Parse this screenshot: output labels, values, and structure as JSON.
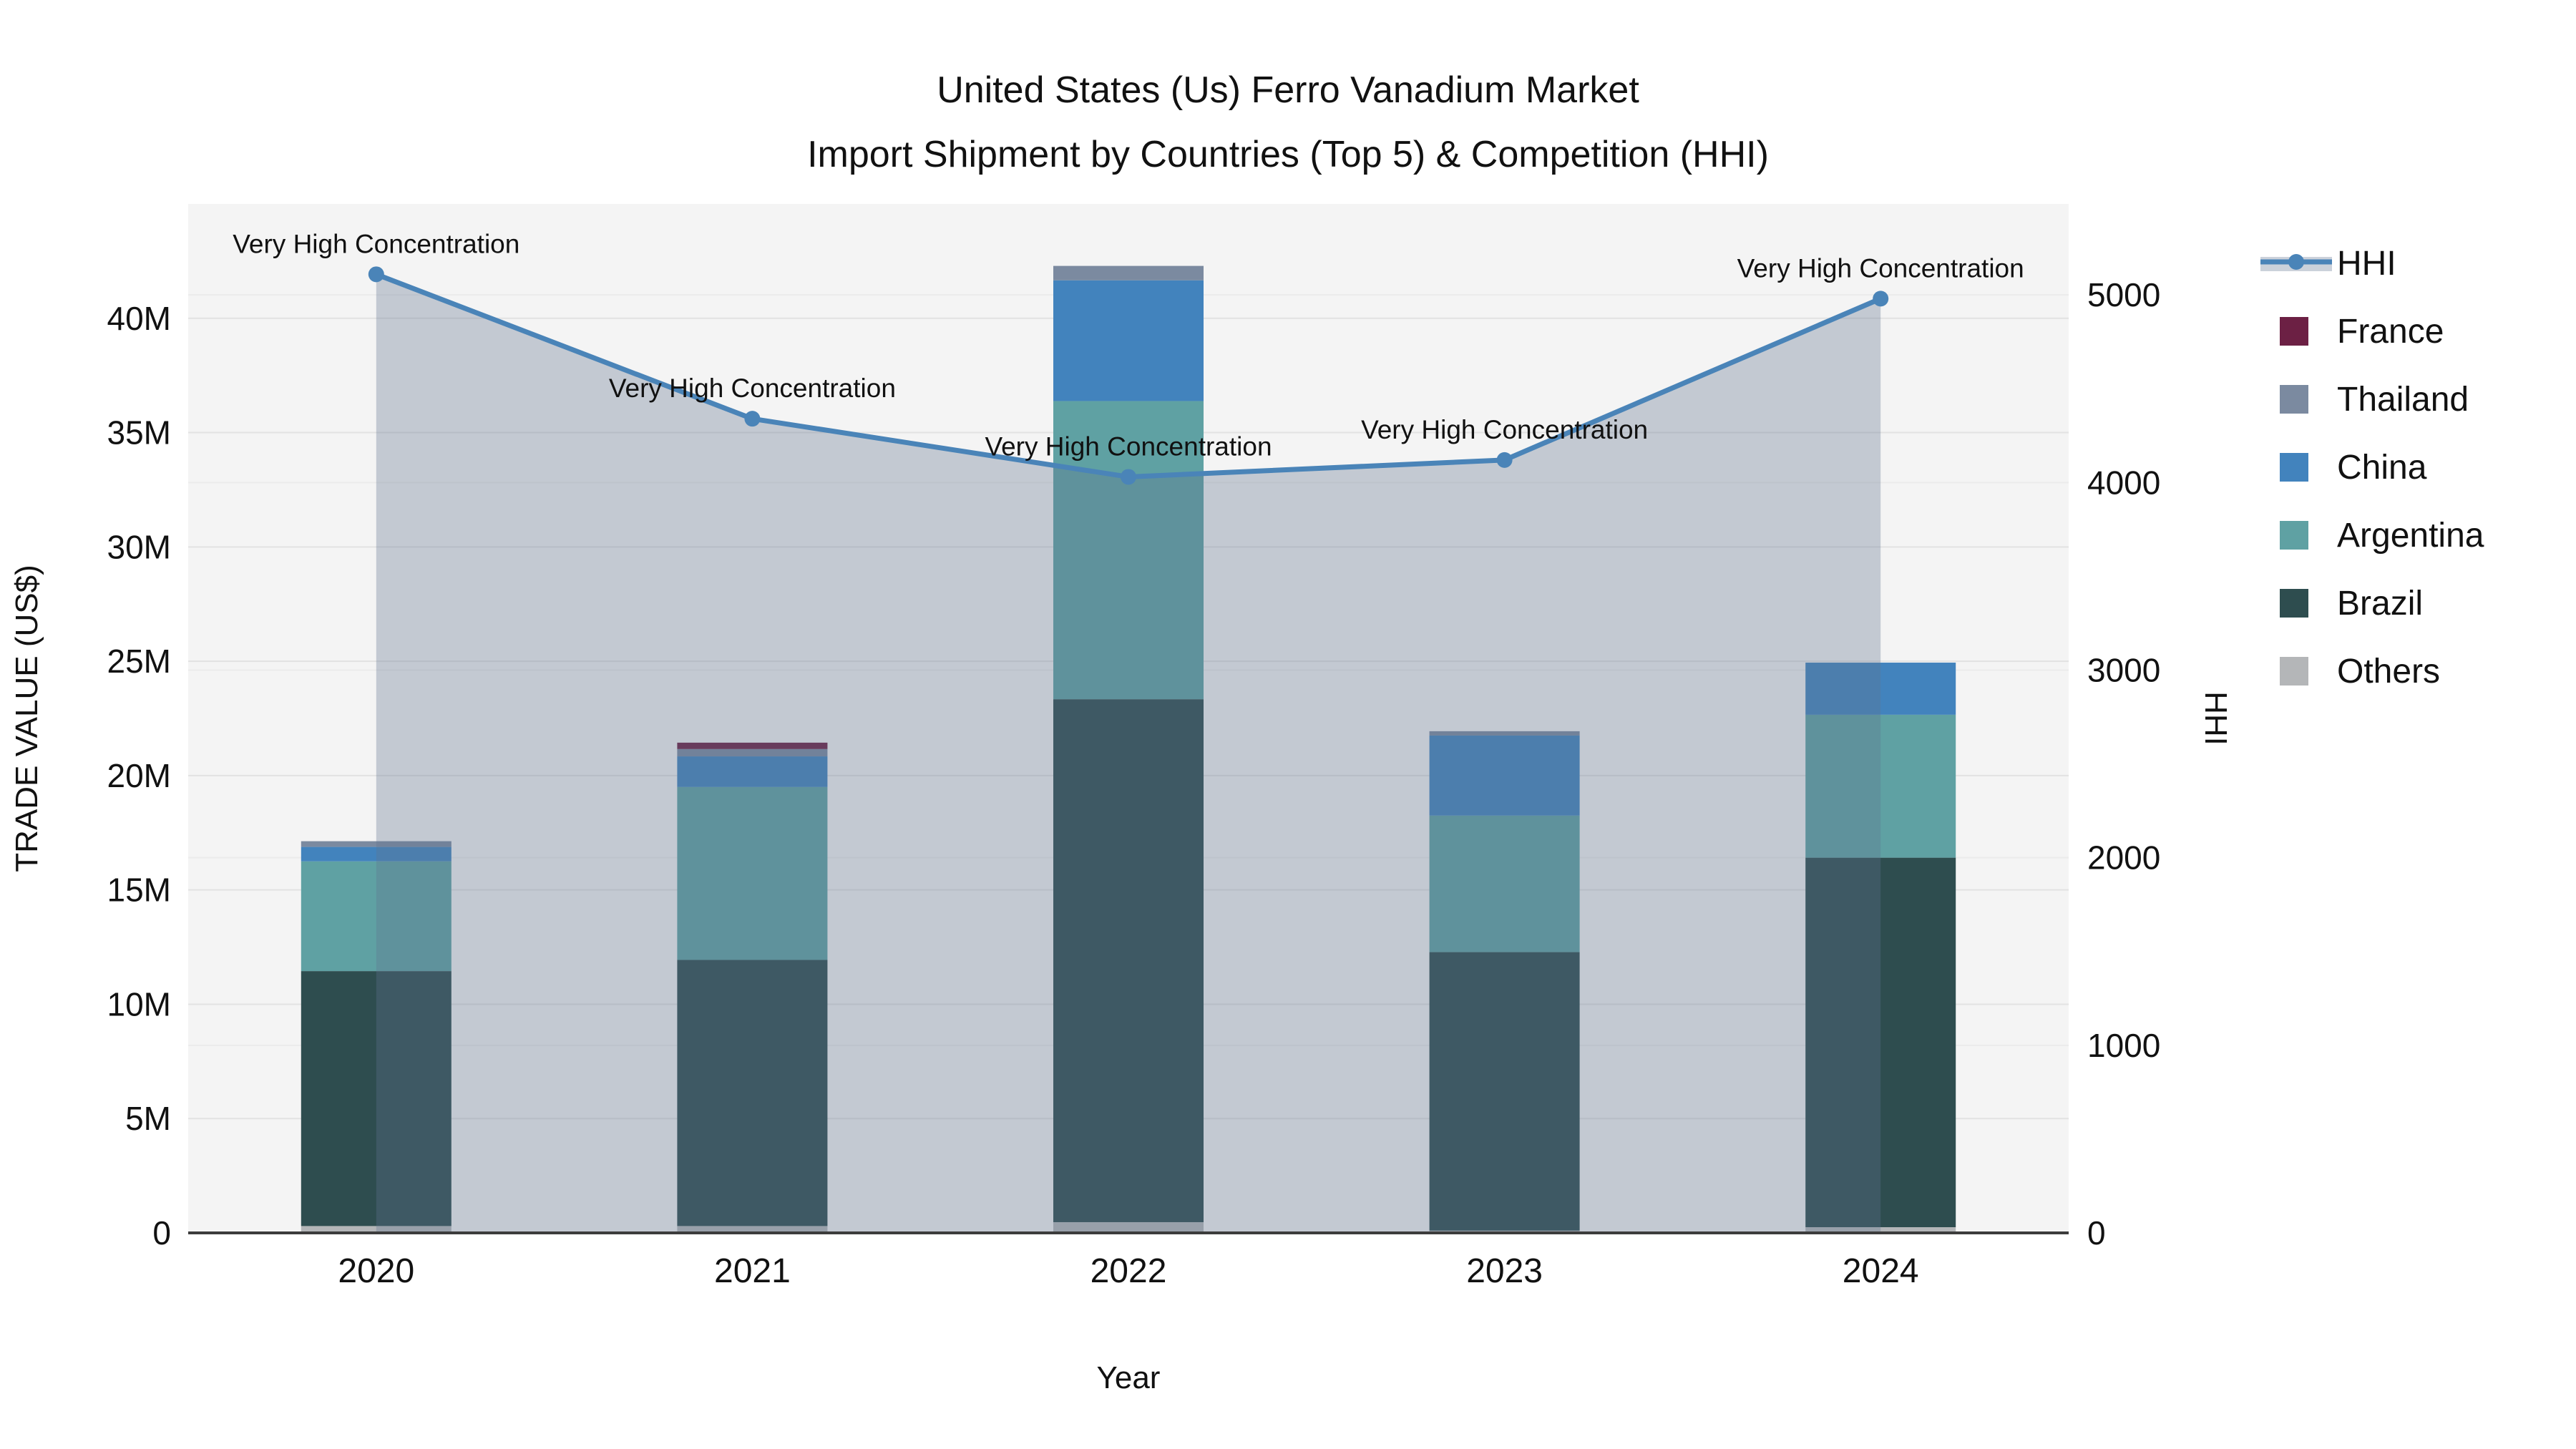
{
  "title": {
    "line1": "United States (Us) Ferro Vanadium Market",
    "line2": "Import Shipment by Countries (Top 5) & Competition (HHI)"
  },
  "axes": {
    "x_title": "Year",
    "y_left_title": "TRADE VALUE (US$)",
    "y_right_title": "HHI",
    "y_left_ticks": [
      {
        "value": 0,
        "label": "0"
      },
      {
        "value": 5,
        "label": "5M"
      },
      {
        "value": 10,
        "label": "10M"
      },
      {
        "value": 15,
        "label": "15M"
      },
      {
        "value": 20,
        "label": "20M"
      },
      {
        "value": 25,
        "label": "25M"
      },
      {
        "value": 30,
        "label": "30M"
      },
      {
        "value": 35,
        "label": "35M"
      },
      {
        "value": 40,
        "label": "40M"
      }
    ],
    "y_right_ticks": [
      {
        "value": 0,
        "label": "0"
      },
      {
        "value": 1000,
        "label": "1000"
      },
      {
        "value": 2000,
        "label": "2000"
      },
      {
        "value": 3000,
        "label": "3000"
      },
      {
        "value": 4000,
        "label": "4000"
      },
      {
        "value": 5000,
        "label": "5000"
      }
    ]
  },
  "chart_data": {
    "type": "bar+line",
    "title": "United States (Us) Ferro Vanadium Market — Import Shipment by Countries (Top 5) & Competition (HHI)",
    "xlabel": "Year",
    "ylabel_left": "TRADE VALUE (US$)",
    "ylabel_right": "HHI",
    "ylim_left_millions": [
      0,
      45
    ],
    "ylim_right": [
      0,
      5485
    ],
    "grid": true,
    "legend_position": "right",
    "categories": [
      "2020",
      "2021",
      "2022",
      "2023",
      "2024"
    ],
    "bar_value_unit": "million US$",
    "bar_series_bottom_to_top": [
      {
        "name": "Others",
        "color": "#b4b6b8",
        "values": [
          0.3,
          0.3,
          0.47,
          0.1,
          0.25
        ]
      },
      {
        "name": "Brazil",
        "color": "#2e4d4f",
        "values": [
          11.15,
          11.64,
          22.87,
          12.18,
          16.16
        ]
      },
      {
        "name": "Argentina",
        "color": "#5fa1a3",
        "values": [
          4.8,
          7.56,
          13.04,
          5.97,
          6.25
        ]
      },
      {
        "name": "China",
        "color": "#4283bd",
        "values": [
          0.63,
          1.34,
          5.28,
          3.5,
          2.28
        ]
      },
      {
        "name": "Thailand",
        "color": "#7b8aa0",
        "values": [
          0.25,
          0.32,
          0.63,
          0.19,
          0.0
        ]
      },
      {
        "name": "France",
        "color": "#6c2044",
        "values": [
          0.0,
          0.28,
          0.0,
          0.0,
          0.0
        ]
      }
    ],
    "bar_totals_millions": [
      17.13,
      21.44,
      42.29,
      21.94,
      24.94
    ],
    "line_series": {
      "name": "HHI",
      "color": "#4a84b8",
      "area_fill": "rgba(98,115,142,0.33)",
      "values": [
        5110,
        4340,
        4030,
        4120,
        4980
      ]
    },
    "annotations": [
      "Very High Concentration",
      "Very High Concentration",
      "Very High Concentration",
      "Very High Concentration",
      "Very High Concentration"
    ]
  },
  "legend": {
    "items": [
      {
        "label": "HHI",
        "type": "line",
        "color": "#4a84b8"
      },
      {
        "label": "France",
        "type": "swatch",
        "color": "#6c2044"
      },
      {
        "label": "Thailand",
        "type": "swatch",
        "color": "#7b8aa0"
      },
      {
        "label": "China",
        "type": "swatch",
        "color": "#4283bd"
      },
      {
        "label": "Argentina",
        "type": "swatch",
        "color": "#5fa1a3"
      },
      {
        "label": "Brazil",
        "type": "swatch",
        "color": "#2e4d4f"
      },
      {
        "label": "Others",
        "type": "swatch",
        "color": "#b4b6b8"
      }
    ]
  },
  "style": {
    "plot_bg": "#f4f4f4",
    "grid_left": "#e2e2e2",
    "grid_right": "#ebebeb",
    "axis_line": "#3c3c3c",
    "text_color": "#111111"
  }
}
